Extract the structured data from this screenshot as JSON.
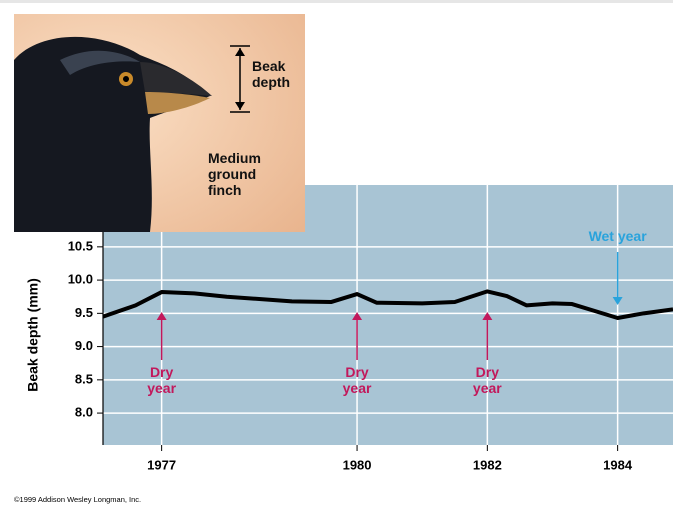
{
  "chart_data": {
    "type": "line",
    "ylabel": "Beak depth (mm)",
    "x": [
      1976.1,
      1976.6,
      1977,
      1977.5,
      1978,
      1979,
      1979.6,
      1980,
      1980.3,
      1981,
      1981.5,
      1982,
      1982.3,
      1982.6,
      1983,
      1983.3,
      1983.7,
      1984,
      1984.4,
      1984.85
    ],
    "series": [
      {
        "name": "Beak depth",
        "color": "#000000",
        "values": [
          9.45,
          9.62,
          9.82,
          9.8,
          9.75,
          9.68,
          9.67,
          9.79,
          9.66,
          9.65,
          9.67,
          9.83,
          9.76,
          9.62,
          9.65,
          9.64,
          9.52,
          9.43,
          9.5,
          9.56
        ]
      }
    ],
    "xlim": [
      1976.1,
      1984.85
    ],
    "xticks": [
      1977,
      1980,
      1982,
      1984
    ],
    "ylim": [
      7.52,
      11.43
    ],
    "yticks": [
      {
        "value": 8.0,
        "label": "8.0"
      },
      8.5,
      {
        "value": 9.0,
        "label": "9.0"
      },
      9.5,
      {
        "value": 10.0,
        "label": "10.0"
      },
      10.5
    ],
    "grid": true,
    "annotations": [
      {
        "text": "Dry year",
        "x": 1977,
        "color": "#c2185b",
        "direction": "up"
      },
      {
        "text": "Dry year",
        "x": 1980,
        "color": "#c2185b",
        "direction": "up"
      },
      {
        "text": "Dry year",
        "x": 1982,
        "color": "#c2185b",
        "direction": "up"
      },
      {
        "text": "Wet year",
        "x": 1984,
        "color": "#29a3dc",
        "direction": "down"
      }
    ],
    "inset_labels": {
      "measure": "Beak depth",
      "species": "Medium ground finch"
    },
    "credit": "©1999 Addison Wesley Longman, Inc."
  }
}
